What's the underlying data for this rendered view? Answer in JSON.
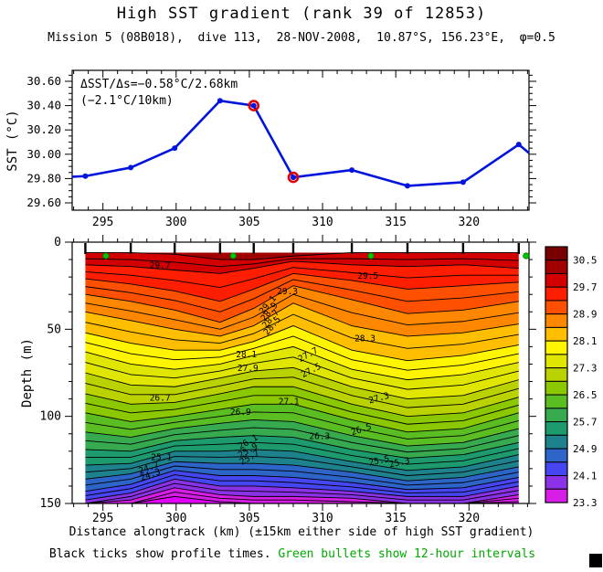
{
  "header": {
    "title": "High SST gradient (rank 39 of 12853)",
    "subtitle": "Mission 5 (08B018),  dive 113,  28-NOV-2008,  10.87°S, 156.23°E,  φ=0.5"
  },
  "footer": {
    "xlabel": "Distance alongtrack (km) (±15km either side of high SST gradient)",
    "caption_black": "Black ticks show profile times. ",
    "caption_green": "Green bullets show 12-hour intervals"
  },
  "colors": {
    "line": "#0014dc",
    "highlight": "#e10000",
    "bullet": "#00c800",
    "caption_green": "#00aa00",
    "contour_line": "#000000"
  },
  "chart_data": [
    {
      "type": "line",
      "name": "sst-alongtrack",
      "ylabel": "SST (°C)",
      "annotation_line1": "ΔSST/Δs=−0.58°C/2.68km",
      "annotation_line2": "(−2.1°C/10km)",
      "xlim": [
        292.9,
        324.1
      ],
      "ylim": [
        29.54,
        30.69
      ],
      "xtick_values": [
        295,
        300,
        305,
        310,
        315,
        320
      ],
      "xtick_labels": [
        "295",
        "300",
        "305",
        "310",
        "315",
        "320"
      ],
      "ytick_values": [
        29.6,
        29.8,
        30.0,
        30.2,
        30.4,
        30.6
      ],
      "ytick_labels": [
        "29.60",
        "29.80",
        "30.00",
        "30.20",
        "30.40",
        "30.60"
      ],
      "x": [
        293.8,
        296.9,
        299.9,
        303.0,
        305.3,
        308.0,
        312.0,
        315.8,
        319.6,
        323.4
      ],
      "y": [
        29.82,
        29.89,
        30.05,
        30.44,
        30.4,
        29.81,
        29.87,
        29.74,
        29.77,
        30.08
      ],
      "highlighted_points": [
        4,
        5
      ],
      "edge_start": {
        "x": 292.9,
        "y": 29.815
      },
      "edge_end": {
        "x": 324.1,
        "y": 30.01
      }
    },
    {
      "type": "heatmap",
      "name": "temperature-depth-section",
      "ylabel": "Depth (m)",
      "xlim": [
        292.9,
        324.1
      ],
      "depth_lim": [
        0,
        150
      ],
      "surface_depth": 6,
      "xtick_values": [
        295,
        300,
        305,
        310,
        315,
        320
      ],
      "xtick_labels": [
        "295",
        "300",
        "305",
        "310",
        "315",
        "320"
      ],
      "ytick_values": [
        0,
        50,
        100,
        150
      ],
      "ytick_labels": [
        "0",
        "50",
        "100",
        "150"
      ],
      "stations_km": [
        293.8,
        296.9,
        299.9,
        303.0,
        305.3,
        308.0,
        312.0,
        315.8,
        319.6,
        323.4
      ],
      "bullets_km": [
        295.2,
        303.9,
        313.3,
        323.9
      ],
      "isotherm_temps": [
        30.1,
        29.7,
        29.3,
        28.9,
        28.5,
        28.1,
        27.7,
        27.3,
        26.9,
        26.5,
        26.1,
        25.7,
        25.3,
        24.9,
        24.5,
        24.1,
        23.7,
        23.3
      ],
      "isotherm_depths": [
        [
          6,
          6,
          7,
          10,
          10,
          8,
          6,
          6,
          6,
          6
        ],
        [
          13,
          14,
          16,
          18,
          15,
          11,
          13,
          14,
          13,
          15
        ],
        [
          21,
          24,
          28,
          34,
          27,
          18,
          22,
          27,
          25,
          23
        ],
        [
          30,
          34,
          39,
          46,
          38,
          25,
          33,
          41,
          39,
          34
        ],
        [
          40,
          45,
          50,
          54,
          48,
          35,
          48,
          54,
          52,
          47
        ],
        [
          52,
          58,
          62,
          62,
          57,
          48,
          62,
          68,
          65,
          59
        ],
        [
          63,
          70,
          73,
          70,
          65,
          60,
          73,
          79,
          76,
          69
        ],
        [
          75,
          82,
          83,
          78,
          74,
          72,
          83,
          90,
          88,
          79
        ],
        [
          87,
          93,
          92,
          87,
          83,
          83,
          93,
          100,
          98,
          89
        ],
        [
          98,
          103,
          100,
          96,
          93,
          93,
          102,
          109,
          107,
          98
        ],
        [
          109,
          112,
          107,
          104,
          102,
          103,
          111,
          117,
          115,
          107
        ],
        [
          119,
          120,
          114,
          112,
          111,
          112,
          119,
          124,
          122,
          115
        ],
        [
          128,
          127,
          120,
          120,
          119,
          120,
          126,
          131,
          129,
          122
        ],
        [
          136,
          133,
          126,
          127,
          127,
          128,
          132,
          137,
          135,
          129
        ],
        [
          143,
          139,
          131,
          134,
          134,
          135,
          138,
          142,
          141,
          135
        ],
        [
          148,
          144,
          136,
          140,
          140,
          141,
          143,
          146,
          146,
          140
        ],
        [
          152,
          148,
          141,
          145,
          146,
          146,
          147,
          150,
          150,
          145
        ],
        [
          157,
          152,
          146,
          149,
          150,
          150,
          151,
          154,
          154,
          149
        ]
      ],
      "contour_labels": [
        {
          "t": "29.7",
          "km": 298.9,
          "d": 15,
          "rot": 0
        },
        {
          "t": "29.5",
          "km": 313.1,
          "d": 21,
          "rot": 0
        },
        {
          "t": "29.3",
          "km": 307.6,
          "d": 30,
          "rot": 0
        },
        {
          "t": "29.1",
          "km": 306.4,
          "d": 37,
          "rot": -50
        },
        {
          "t": "28.9",
          "km": 306.5,
          "d": 41,
          "rot": -50
        },
        {
          "t": "28.7",
          "km": 306.6,
          "d": 45,
          "rot": -50
        },
        {
          "t": "28.5",
          "km": 306.7,
          "d": 49,
          "rot": -50
        },
        {
          "t": "28.3",
          "km": 312.9,
          "d": 57,
          "rot": 0
        },
        {
          "t": "28.1",
          "km": 304.8,
          "d": 66,
          "rot": 0
        },
        {
          "t": "27.9",
          "km": 304.9,
          "d": 74,
          "rot": 0
        },
        {
          "t": "27.7",
          "km": 309.1,
          "d": 66,
          "rot": -28
        },
        {
          "t": "27.5",
          "km": 309.3,
          "d": 75,
          "rot": -28
        },
        {
          "t": "27.3",
          "km": 313.9,
          "d": 91,
          "rot": -15
        },
        {
          "t": "27.1",
          "km": 307.7,
          "d": 93,
          "rot": 0
        },
        {
          "t": "26.9",
          "km": 304.4,
          "d": 99,
          "rot": 0
        },
        {
          "t": "26.7",
          "km": 298.9,
          "d": 91,
          "rot": 0
        },
        {
          "t": "26.5",
          "km": 312.7,
          "d": 109,
          "rot": -18
        },
        {
          "t": "26.3",
          "km": 309.8,
          "d": 113,
          "rot": 0
        },
        {
          "t": "26.1",
          "km": 305.0,
          "d": 116,
          "rot": -30
        },
        {
          "t": "25.9",
          "km": 305.0,
          "d": 121,
          "rot": -30
        },
        {
          "t": "25.7",
          "km": 305.1,
          "d": 125,
          "rot": -30
        },
        {
          "t": "25.5",
          "km": 313.9,
          "d": 127,
          "rot": -12
        },
        {
          "t": "25.3",
          "km": 315.3,
          "d": 128,
          "rot": -12
        },
        {
          "t": "25.1",
          "km": 299.0,
          "d": 125,
          "rot": 0
        },
        {
          "t": "24.7",
          "km": 298.2,
          "d": 131,
          "rot": -20
        },
        {
          "t": "24.3",
          "km": 298.3,
          "d": 135,
          "rot": -20
        }
      ],
      "colorbar": {
        "min": 23.3,
        "max": 30.9,
        "colors": [
          "#780000",
          "#a00000",
          "#d20000",
          "#ff1e00",
          "#ff5000",
          "#ff8700",
          "#ffbe00",
          "#fff500",
          "#e1e600",
          "#b9d200",
          "#8cc800",
          "#5abe23",
          "#37aa50",
          "#1e9b6e",
          "#1e828c",
          "#2d64c8",
          "#4646f0",
          "#8c32e6",
          "#d71ee6"
        ],
        "below_color": "#e100ff",
        "labels": [
          "30.5",
          "29.7",
          "28.9",
          "28.1",
          "27.3",
          "26.5",
          "25.7",
          "24.9",
          "24.1",
          "23.3"
        ],
        "label_values": [
          30.5,
          29.7,
          28.9,
          28.1,
          27.3,
          26.5,
          25.7,
          24.9,
          24.1,
          23.3
        ]
      }
    }
  ]
}
